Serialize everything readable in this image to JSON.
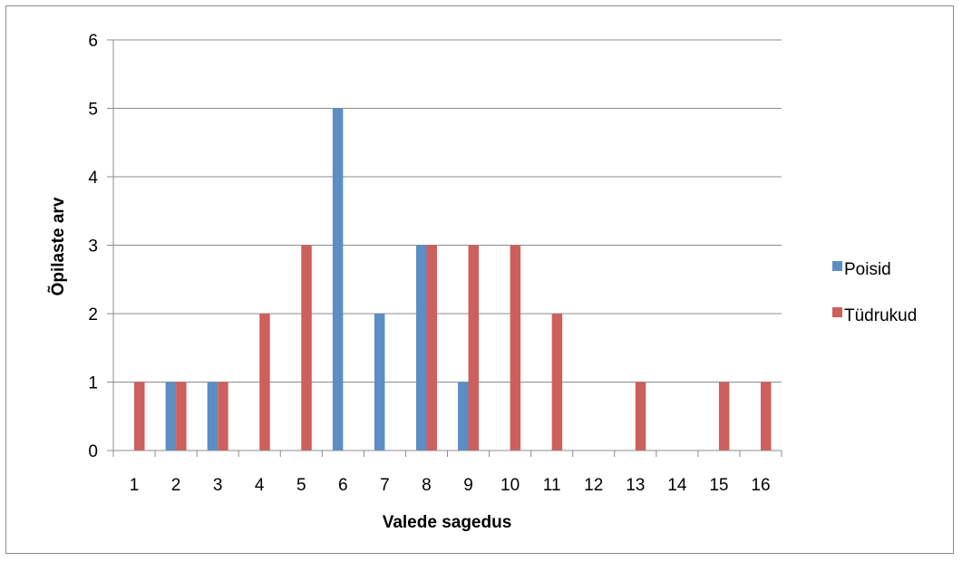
{
  "chart_data": {
    "type": "bar",
    "title": "",
    "xlabel": "Valede sagedus",
    "ylabel": "Õpilaste arv",
    "categories": [
      "1",
      "2",
      "3",
      "4",
      "5",
      "6",
      "7",
      "8",
      "9",
      "10",
      "11",
      "12",
      "13",
      "14",
      "15",
      "16"
    ],
    "series": [
      {
        "name": "Poisid",
        "color": "#5b8ec4",
        "values": [
          0,
          1,
          1,
          0,
          0,
          5,
          2,
          3,
          1,
          0,
          0,
          0,
          0,
          0,
          0,
          0
        ]
      },
      {
        "name": "Tüdrukud",
        "color": "#cd5f5c",
        "values": [
          1,
          1,
          1,
          2,
          3,
          0,
          0,
          3,
          3,
          3,
          2,
          0,
          1,
          0,
          1,
          1
        ]
      }
    ],
    "ylim": [
      0,
      6
    ],
    "yticks": [
      0,
      1,
      2,
      3,
      4,
      5,
      6
    ],
    "grid": true,
    "legend": "right"
  }
}
